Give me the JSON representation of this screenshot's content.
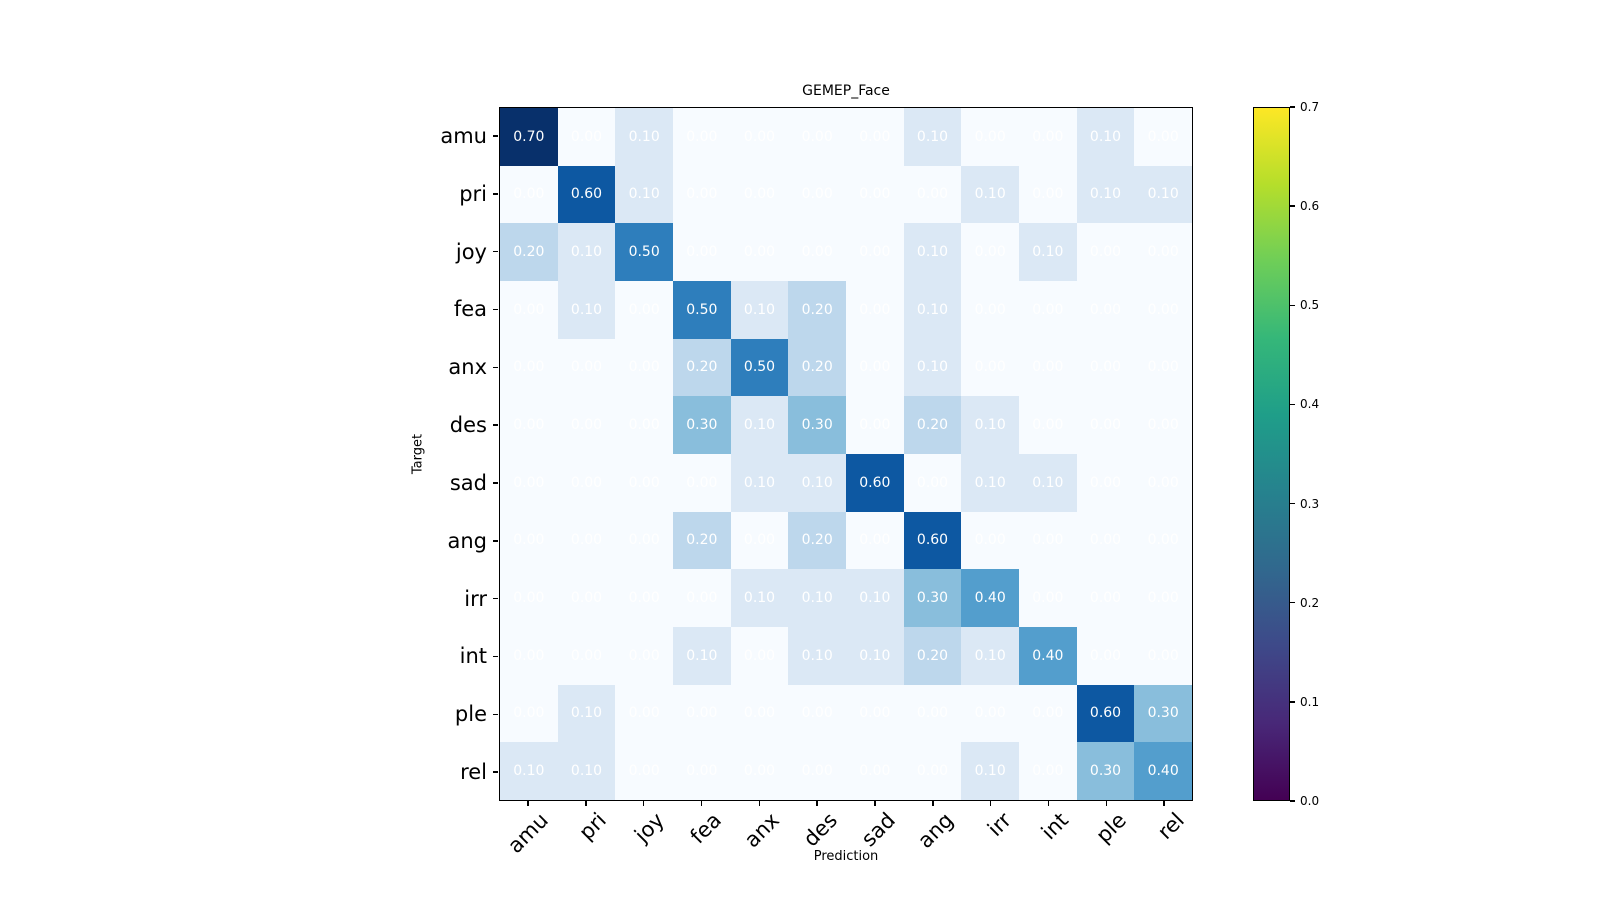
{
  "chart_data": {
    "type": "heatmap",
    "title": "GEMEP_Face",
    "xlabel": "Prediction",
    "ylabel": "Target",
    "x_categories": [
      "amu",
      "pri",
      "joy",
      "fea",
      "anx",
      "des",
      "sad",
      "ang",
      "irr",
      "int",
      "ple",
      "rel"
    ],
    "y_categories": [
      "amu",
      "pri",
      "joy",
      "fea",
      "anx",
      "des",
      "sad",
      "ang",
      "irr",
      "int",
      "ple",
      "rel"
    ],
    "matrix": [
      [
        0.7,
        0.0,
        0.1,
        0.0,
        0.0,
        0.0,
        0.0,
        0.1,
        0.0,
        0.0,
        0.1,
        0.0
      ],
      [
        0.0,
        0.6,
        0.1,
        0.0,
        0.0,
        0.0,
        0.0,
        0.0,
        0.1,
        0.0,
        0.1,
        0.1
      ],
      [
        0.2,
        0.1,
        0.5,
        0.0,
        0.0,
        0.0,
        0.0,
        0.1,
        0.0,
        0.1,
        0.0,
        0.0
      ],
      [
        0.0,
        0.1,
        0.0,
        0.5,
        0.1,
        0.2,
        0.0,
        0.1,
        0.0,
        0.0,
        0.0,
        0.0
      ],
      [
        0.0,
        0.0,
        0.0,
        0.2,
        0.5,
        0.2,
        0.0,
        0.1,
        0.0,
        0.0,
        0.0,
        0.0
      ],
      [
        0.0,
        0.0,
        0.0,
        0.3,
        0.1,
        0.3,
        0.0,
        0.2,
        0.1,
        0.0,
        0.0,
        0.0
      ],
      [
        0.0,
        0.0,
        0.0,
        0.0,
        0.1,
        0.1,
        0.6,
        0.0,
        0.1,
        0.1,
        0.0,
        0.0
      ],
      [
        0.0,
        0.0,
        0.0,
        0.2,
        0.0,
        0.2,
        0.0,
        0.6,
        0.0,
        0.0,
        0.0,
        0.0
      ],
      [
        0.0,
        0.0,
        0.0,
        0.0,
        0.1,
        0.1,
        0.1,
        0.3,
        0.4,
        0.0,
        0.0,
        0.0
      ],
      [
        0.0,
        0.0,
        0.0,
        0.1,
        0.0,
        0.1,
        0.1,
        0.2,
        0.1,
        0.4,
        0.0,
        0.0
      ],
      [
        0.0,
        0.1,
        0.0,
        0.0,
        0.0,
        0.0,
        0.0,
        0.0,
        0.0,
        0.0,
        0.6,
        0.3
      ],
      [
        0.1,
        0.1,
        0.0,
        0.0,
        0.0,
        0.0,
        0.0,
        0.0,
        0.1,
        0.0,
        0.3,
        0.4
      ]
    ],
    "cell_text_format": "0.00",
    "cell_text_color": "#ffffff",
    "vmin": 0.0,
    "vmax": 0.7,
    "cell_colormap": "Blues",
    "value_colors": {
      "0.00": "#f7fbff",
      "0.10": "#dbe8f5",
      "0.20": "#bdd7ec",
      "0.30": "#89bedc",
      "0.40": "#539ecd",
      "0.50": "#2e7ebc",
      "0.60": "#0d58a2",
      "0.70": "#08306b"
    },
    "grid": "off",
    "legend": "none",
    "colorbar": {
      "colormap": "viridis",
      "position": "right",
      "tick_values": [
        0.0,
        0.1,
        0.2,
        0.3,
        0.4,
        0.5,
        0.6,
        0.7
      ],
      "tick_labels": [
        "0.0",
        "0.1",
        "0.2",
        "0.3",
        "0.4",
        "0.5",
        "0.6",
        "0.7"
      ],
      "gradient_bottom_to_top": [
        "#440154",
        "#482878",
        "#3e4989",
        "#31688e",
        "#26828e",
        "#1f9e89",
        "#35b779",
        "#6ece58",
        "#b5de2b",
        "#fde725"
      ]
    }
  }
}
